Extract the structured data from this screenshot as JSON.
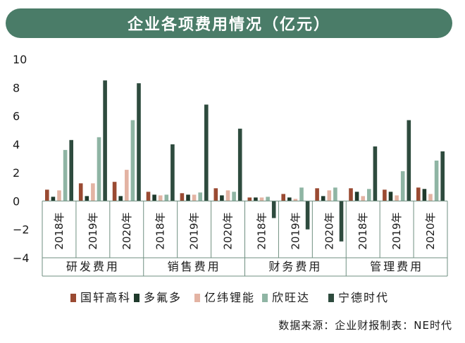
{
  "title": "企业各项费用情况（亿元）",
  "source": "数据来源：企业财报制表：NE时代",
  "colors": {
    "title_bg": "#4a7c68",
    "series": [
      "#9a4a32",
      "#1f3a2c",
      "#e3b3a3",
      "#8fb5a4",
      "#2e4b3e"
    ],
    "axis": "#6f8f80"
  },
  "chart_data": {
    "type": "bar",
    "title": "企业各项费用情况（亿元）",
    "ylim": [
      -4,
      10
    ],
    "yticks": [
      -4,
      -2,
      0,
      2,
      4,
      6,
      8,
      10
    ],
    "grid": false,
    "legend_position": "bottom",
    "groups": [
      "研发费用",
      "销售费用",
      "财务费用",
      "管理费用"
    ],
    "categories": [
      "2018年",
      "2019年",
      "2020年",
      "2018年",
      "2019年",
      "2020年",
      "2018年",
      "2019年",
      "2020年",
      "2018年",
      "2019年",
      "2020年"
    ],
    "series": [
      {
        "name": "国轩高科",
        "values": [
          0.8,
          1.25,
          1.35,
          0.65,
          0.55,
          0.9,
          0.25,
          0.5,
          0.9,
          0.9,
          0.8,
          0.95
        ]
      },
      {
        "name": "多氟多",
        "values": [
          0.3,
          0.35,
          0.35,
          0.45,
          0.45,
          0.4,
          0.25,
          0.25,
          0.35,
          0.65,
          0.65,
          0.85
        ]
      },
      {
        "name": "亿纬锂能",
        "values": [
          0.75,
          1.25,
          2.2,
          0.4,
          0.45,
          0.75,
          0.25,
          0.15,
          0.75,
          0.35,
          0.4,
          0.5
        ]
      },
      {
        "name": "欣旺达",
        "values": [
          3.6,
          4.5,
          5.7,
          0.45,
          0.6,
          0.65,
          0.3,
          0.95,
          0.95,
          0.85,
          2.1,
          2.85
        ]
      },
      {
        "name": "宁德时代",
        "values": [
          4.3,
          8.5,
          8.3,
          4.0,
          6.8,
          5.1,
          -1.2,
          -2.0,
          -2.85,
          3.85,
          5.7,
          3.5
        ]
      }
    ]
  }
}
